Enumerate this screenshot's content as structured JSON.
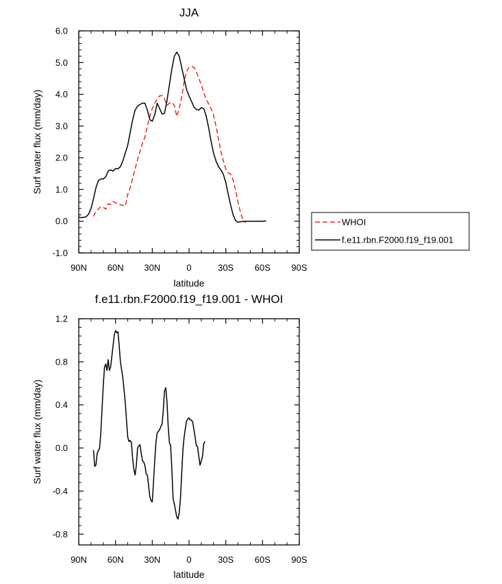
{
  "chart_data": [
    {
      "type": "line",
      "title": "JJA",
      "xlabel": "latitude",
      "ylabel": "Surf water flux (mm/day)",
      "xlim": [
        -90,
        90
      ],
      "ylim": [
        -1.0,
        6.0
      ],
      "x_ticks": [
        -90,
        -60,
        -30,
        0,
        30,
        60,
        90
      ],
      "x_tick_labels": [
        "90N",
        "60N",
        "30N",
        "0",
        "30S",
        "60S",
        "90S"
      ],
      "y_ticks": [
        -1.0,
        0.0,
        1.0,
        2.0,
        3.0,
        4.0,
        5.0,
        6.0
      ],
      "y_tick_labels": [
        "-1.0",
        "0.0",
        "1.0",
        "2.0",
        "3.0",
        "4.0",
        "5.0",
        "6.0"
      ],
      "legend": {
        "placement": "right",
        "entries": [
          "WHOI",
          "f.e11.rbn.F2000.f19_f19.001"
        ]
      },
      "series": [
        {
          "name": "WHOI",
          "color": "#e8261f",
          "dash": true,
          "points": [
            [
              -78,
              0.15
            ],
            [
              -76,
              0.3
            ],
            [
              -74,
              0.38
            ],
            [
              -72,
              0.46
            ],
            [
              -70,
              0.44
            ],
            [
              -68,
              0.38
            ],
            [
              -66,
              0.55
            ],
            [
              -64,
              0.52
            ],
            [
              -62,
              0.62
            ],
            [
              -60,
              0.58
            ],
            [
              -58,
              0.55
            ],
            [
              -56,
              0.52
            ],
            [
              -54,
              0.5
            ],
            [
              -52,
              0.47
            ],
            [
              -50,
              0.85
            ],
            [
              -48,
              1.05
            ],
            [
              -46,
              1.35
            ],
            [
              -44,
              1.65
            ],
            [
              -42,
              1.95
            ],
            [
              -40,
              2.2
            ],
            [
              -38,
              2.45
            ],
            [
              -36,
              2.65
            ],
            [
              -34,
              3.0
            ],
            [
              -32,
              3.3
            ],
            [
              -30,
              3.55
            ],
            [
              -28,
              3.72
            ],
            [
              -26,
              3.85
            ],
            [
              -24,
              3.95
            ],
            [
              -22,
              3.96
            ],
            [
              -20,
              3.85
            ],
            [
              -18,
              3.65
            ],
            [
              -16,
              3.72
            ],
            [
              -14,
              3.75
            ],
            [
              -12,
              3.65
            ],
            [
              -10,
              3.3
            ],
            [
              -8,
              3.55
            ],
            [
              -6,
              3.9
            ],
            [
              -4,
              4.4
            ],
            [
              -2,
              4.72
            ],
            [
              0,
              4.85
            ],
            [
              2,
              4.88
            ],
            [
              4,
              4.85
            ],
            [
              6,
              4.7
            ],
            [
              8,
              4.5
            ],
            [
              10,
              4.3
            ],
            [
              12,
              4.05
            ],
            [
              14,
              3.85
            ],
            [
              16,
              3.7
            ],
            [
              18,
              3.55
            ],
            [
              20,
              3.35
            ],
            [
              22,
              3.0
            ],
            [
              24,
              2.6
            ],
            [
              26,
              2.2
            ],
            [
              28,
              1.9
            ],
            [
              30,
              1.65
            ],
            [
              32,
              1.52
            ],
            [
              34,
              1.48
            ],
            [
              36,
              1.3
            ],
            [
              38,
              0.98
            ],
            [
              40,
              0.6
            ],
            [
              42,
              0.28
            ],
            [
              44,
              0.05
            ],
            [
              46,
              -0.05
            ]
          ]
        },
        {
          "name": "f.e11.rbn.F2000.f19_f19.001",
          "color": "#000000",
          "dash": false,
          "points": [
            [
              -90,
              0.13
            ],
            [
              -88,
              0.11
            ],
            [
              -86,
              0.12
            ],
            [
              -84,
              0.14
            ],
            [
              -82,
              0.22
            ],
            [
              -80,
              0.4
            ],
            [
              -78,
              0.7
            ],
            [
              -76,
              1.05
            ],
            [
              -74,
              1.28
            ],
            [
              -72,
              1.33
            ],
            [
              -70,
              1.33
            ],
            [
              -68,
              1.4
            ],
            [
              -66,
              1.58
            ],
            [
              -64,
              1.62
            ],
            [
              -62,
              1.58
            ],
            [
              -60,
              1.66
            ],
            [
              -58,
              1.65
            ],
            [
              -56,
              1.72
            ],
            [
              -54,
              1.9
            ],
            [
              -52,
              2.15
            ],
            [
              -50,
              2.4
            ],
            [
              -48,
              2.8
            ],
            [
              -46,
              3.2
            ],
            [
              -44,
              3.5
            ],
            [
              -42,
              3.63
            ],
            [
              -40,
              3.68
            ],
            [
              -38,
              3.72
            ],
            [
              -36,
              3.72
            ],
            [
              -34,
              3.5
            ],
            [
              -32,
              3.2
            ],
            [
              -30,
              3.15
            ],
            [
              -28,
              3.35
            ],
            [
              -26,
              3.72
            ],
            [
              -24,
              3.55
            ],
            [
              -22,
              3.38
            ],
            [
              -20,
              3.4
            ],
            [
              -18,
              3.8
            ],
            [
              -16,
              4.3
            ],
            [
              -14,
              4.8
            ],
            [
              -12,
              5.2
            ],
            [
              -10,
              5.33
            ],
            [
              -8,
              5.2
            ],
            [
              -6,
              4.85
            ],
            [
              -4,
              4.5
            ],
            [
              -2,
              4.15
            ],
            [
              0,
              3.95
            ],
            [
              2,
              3.78
            ],
            [
              4,
              3.6
            ],
            [
              6,
              3.52
            ],
            [
              8,
              3.5
            ],
            [
              10,
              3.58
            ],
            [
              12,
              3.55
            ],
            [
              14,
              3.32
            ],
            [
              16,
              2.95
            ],
            [
              18,
              2.52
            ],
            [
              20,
              2.15
            ],
            [
              22,
              1.9
            ],
            [
              24,
              1.72
            ],
            [
              26,
              1.62
            ],
            [
              28,
              1.48
            ],
            [
              30,
              1.22
            ],
            [
              32,
              0.85
            ],
            [
              34,
              0.5
            ],
            [
              36,
              0.2
            ],
            [
              38,
              0.02
            ],
            [
              40,
              -0.03
            ],
            [
              45,
              0.0
            ],
            [
              60,
              0.0
            ],
            [
              63,
              0.01
            ]
          ]
        }
      ]
    },
    {
      "type": "line",
      "title": "f.e11.rbn.F2000.f19_f19.001 - WHOI",
      "xlabel": "latitude",
      "ylabel": "Surf water flux (mm/day)",
      "xlim": [
        -90,
        90
      ],
      "ylim": [
        -0.9,
        1.2
      ],
      "x_ticks": [
        -90,
        -60,
        -30,
        0,
        30,
        60,
        90
      ],
      "x_tick_labels": [
        "90N",
        "60N",
        "30N",
        "0",
        "30S",
        "60S",
        "90S"
      ],
      "y_ticks": [
        -0.8,
        -0.4,
        0.0,
        0.4,
        0.8,
        1.2
      ],
      "y_tick_labels": [
        "-0.8",
        "-0.4",
        "0.0",
        "0.4",
        "0.8",
        "1.2"
      ],
      "series": [
        {
          "color": "#000000",
          "dash": false,
          "points": [
            [
              -78,
              -0.02
            ],
            [
              -77,
              -0.17
            ],
            [
              -76,
              -0.16
            ],
            [
              -75,
              -0.05
            ],
            [
              -73,
              0.0
            ],
            [
              -72,
              0.14
            ],
            [
              -70,
              0.58
            ],
            [
              -69,
              0.75
            ],
            [
              -68,
              0.78
            ],
            [
              -67,
              0.72
            ],
            [
              -66,
              0.82
            ],
            [
              -65,
              0.72
            ],
            [
              -64,
              0.75
            ],
            [
              -62,
              0.95
            ],
            [
              -61,
              1.05
            ],
            [
              -60,
              1.09
            ],
            [
              -59,
              1.07
            ],
            [
              -58,
              1.08
            ],
            [
              -57,
              0.95
            ],
            [
              -56,
              0.8
            ],
            [
              -54,
              0.65
            ],
            [
              -52,
              0.42
            ],
            [
              -51,
              0.25
            ],
            [
              -50,
              0.1
            ],
            [
              -49,
              0.06
            ],
            [
              -48,
              0.07
            ],
            [
              -47,
              0.05
            ],
            [
              -46,
              -0.1
            ],
            [
              -45,
              -0.2
            ],
            [
              -44,
              -0.25
            ],
            [
              -43,
              -0.16
            ],
            [
              -42,
              0.0
            ],
            [
              -41,
              0.02
            ],
            [
              -40,
              0.03
            ],
            [
              -39,
              -0.05
            ],
            [
              -38,
              -0.12
            ],
            [
              -37,
              -0.13
            ],
            [
              -36,
              -0.16
            ],
            [
              -35,
              -0.24
            ],
            [
              -34,
              -0.25
            ],
            [
              -32,
              -0.45
            ],
            [
              -31,
              -0.49
            ],
            [
              -30,
              -0.5
            ],
            [
              -29,
              -0.32
            ],
            [
              -28,
              -0.12
            ],
            [
              -27,
              0.05
            ],
            [
              -26,
              0.14
            ],
            [
              -24,
              0.17
            ],
            [
              -23,
              0.2
            ],
            [
              -22,
              0.22
            ],
            [
              -21,
              0.35
            ],
            [
              -20,
              0.53
            ],
            [
              -19,
              0.56
            ],
            [
              -18,
              0.43
            ],
            [
              -17,
              0.2
            ],
            [
              -16,
              0.05
            ],
            [
              -15,
              0.02
            ],
            [
              -14,
              -0.2
            ],
            [
              -13,
              -0.47
            ],
            [
              -12,
              -0.52
            ],
            [
              -11,
              -0.58
            ],
            [
              -10,
              -0.64
            ],
            [
              -9,
              -0.66
            ],
            [
              -8,
              -0.6
            ],
            [
              -7,
              -0.47
            ],
            [
              -5,
              -0.02
            ],
            [
              -4,
              0.1
            ],
            [
              -3,
              0.18
            ],
            [
              -2,
              0.25
            ],
            [
              -1,
              0.27
            ],
            [
              0,
              0.28
            ],
            [
              1,
              0.26
            ],
            [
              2,
              0.26
            ],
            [
              3,
              0.24
            ],
            [
              4,
              0.17
            ],
            [
              5,
              0.1
            ],
            [
              6,
              0.02
            ],
            [
              7,
              0.01
            ],
            [
              8,
              -0.08
            ],
            [
              9,
              -0.16
            ],
            [
              10,
              -0.12
            ],
            [
              11,
              -0.08
            ],
            [
              12,
              0.04
            ],
            [
              13,
              0.06
            ]
          ]
        }
      ]
    }
  ]
}
